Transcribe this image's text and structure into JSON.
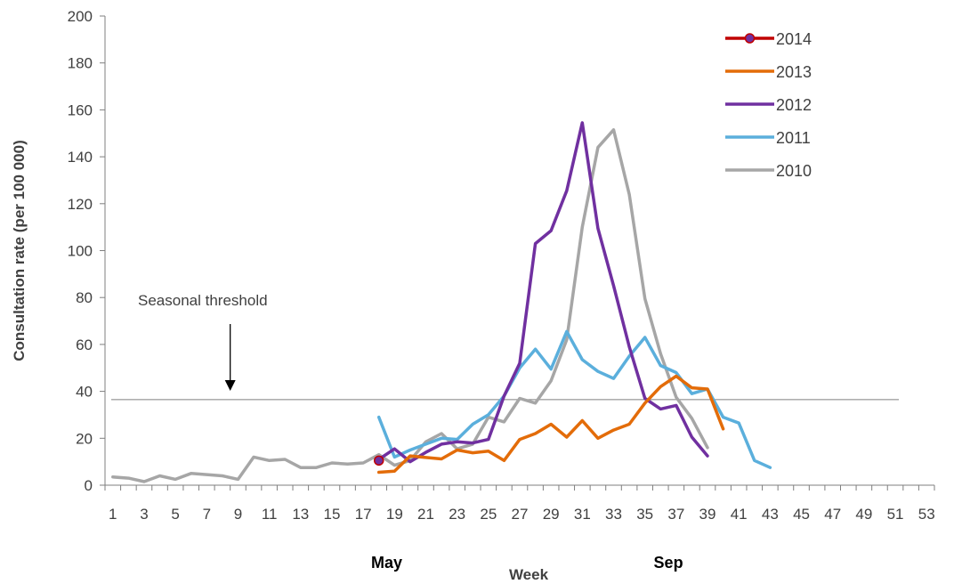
{
  "chart_data": {
    "type": "line",
    "xlabel": "Week",
    "ylabel": "Consultation rate (per 100 000)",
    "xlim": [
      1,
      53
    ],
    "ylim": [
      0,
      200
    ],
    "x_tick_labels": [
      "1",
      "3",
      "5",
      "7",
      "9",
      "11",
      "13",
      "15",
      "17",
      "19",
      "21",
      "23",
      "25",
      "27",
      "29",
      "31",
      "33",
      "35",
      "37",
      "39",
      "41",
      "43",
      "45",
      "47",
      "49",
      "51",
      "53"
    ],
    "y_tick_labels": [
      "0",
      "20",
      "40",
      "60",
      "80",
      "100",
      "120",
      "140",
      "160",
      "180",
      "200"
    ],
    "month_labels": [
      {
        "label": "May",
        "week": 18.5
      },
      {
        "label": "Sep",
        "week": 36.5
      }
    ],
    "threshold": {
      "value": 36.5,
      "label": "Seasonal threshold",
      "arrow_week": 8.5
    },
    "legend_position": "top-right",
    "grid": false,
    "series": [
      {
        "name": "2014",
        "color": "#C00000",
        "marker_fill": "#7030A0",
        "marker": true,
        "points": [
          [
            18,
            10.5
          ]
        ]
      },
      {
        "name": "2013",
        "color": "#E36C09",
        "marker": false,
        "points": [
          [
            18,
            5.5
          ],
          [
            19,
            6
          ],
          [
            20,
            12.5
          ],
          [
            21,
            11.8
          ],
          [
            22,
            11.2
          ],
          [
            23,
            15
          ],
          [
            24,
            13.8
          ],
          [
            25,
            14.5
          ],
          [
            26,
            10.5
          ],
          [
            27,
            19.5
          ],
          [
            28,
            22
          ],
          [
            29,
            26
          ],
          [
            30,
            20.5
          ],
          [
            31,
            27.5
          ],
          [
            32,
            20
          ],
          [
            33,
            23.5
          ],
          [
            34,
            26
          ],
          [
            35,
            35
          ],
          [
            36,
            42
          ],
          [
            37,
            46.5
          ],
          [
            38,
            41.5
          ],
          [
            39,
            41
          ],
          [
            40,
            24
          ]
        ]
      },
      {
        "name": "2012",
        "color": "#7030A0",
        "marker": false,
        "points": [
          [
            18,
            11
          ],
          [
            19,
            15.5
          ],
          [
            20,
            10
          ],
          [
            21,
            14
          ],
          [
            22,
            17.5
          ],
          [
            23,
            18.5
          ],
          [
            24,
            18
          ],
          [
            25,
            19.5
          ],
          [
            26,
            38
          ],
          [
            27,
            52
          ],
          [
            28,
            103
          ],
          [
            29,
            108.5
          ],
          [
            30,
            125.5
          ],
          [
            31,
            154.5
          ],
          [
            32,
            109.5
          ],
          [
            33,
            85
          ],
          [
            34,
            59
          ],
          [
            35,
            37
          ],
          [
            36,
            32.5
          ],
          [
            37,
            34
          ],
          [
            38,
            20.5
          ],
          [
            39,
            12.5
          ]
        ]
      },
      {
        "name": "2011",
        "color": "#5BAFDC",
        "marker": false,
        "points": [
          [
            18,
            29
          ],
          [
            19,
            12
          ],
          [
            20,
            15
          ],
          [
            21,
            17.5
          ],
          [
            22,
            20
          ],
          [
            23,
            19.5
          ],
          [
            24,
            26
          ],
          [
            25,
            30
          ],
          [
            26,
            38
          ],
          [
            27,
            50
          ],
          [
            28,
            58
          ],
          [
            29,
            49.5
          ],
          [
            30,
            65.5
          ],
          [
            31,
            53.5
          ],
          [
            32,
            48.5
          ],
          [
            33,
            45.5
          ],
          [
            34,
            55
          ],
          [
            35,
            63
          ],
          [
            36,
            51
          ],
          [
            37,
            48
          ],
          [
            38,
            39
          ],
          [
            39,
            41
          ],
          [
            40,
            29
          ],
          [
            41,
            26.5
          ],
          [
            42,
            10.5
          ],
          [
            43,
            7.5
          ]
        ]
      },
      {
        "name": "2010",
        "color": "#A6A6A6",
        "marker": false,
        "points": [
          [
            1,
            3.5
          ],
          [
            2,
            3
          ],
          [
            3,
            1.5
          ],
          [
            4,
            4
          ],
          [
            5,
            2.5
          ],
          [
            6,
            5
          ],
          [
            7,
            4.5
          ],
          [
            8,
            4
          ],
          [
            9,
            2.5
          ],
          [
            10,
            12
          ],
          [
            11,
            10.5
          ],
          [
            12,
            11
          ],
          [
            13,
            7.5
          ],
          [
            14,
            7.5
          ],
          [
            15,
            9.5
          ],
          [
            16,
            9
          ],
          [
            17,
            9.5
          ],
          [
            18,
            13
          ],
          [
            19,
            8.5
          ],
          [
            20,
            10.5
          ],
          [
            21,
            18.5
          ],
          [
            22,
            22
          ],
          [
            23,
            15.5
          ],
          [
            24,
            17.5
          ],
          [
            25,
            29
          ],
          [
            26,
            27
          ],
          [
            27,
            37
          ],
          [
            28,
            35
          ],
          [
            29,
            44.5
          ],
          [
            30,
            62
          ],
          [
            31,
            110
          ],
          [
            32,
            144
          ],
          [
            33,
            151.5
          ],
          [
            34,
            124
          ],
          [
            35,
            79.5
          ],
          [
            36,
            56
          ],
          [
            37,
            37.5
          ],
          [
            38,
            28.5
          ],
          [
            39,
            16
          ]
        ]
      }
    ]
  }
}
